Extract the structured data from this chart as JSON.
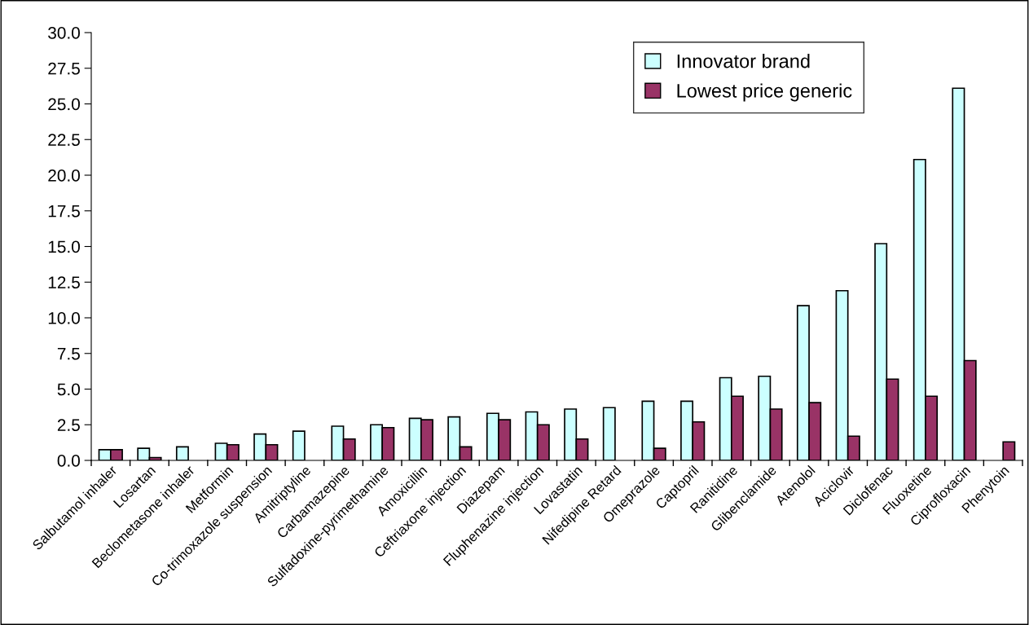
{
  "chart_data": {
    "type": "bar",
    "categories": [
      "Salbutamol inhaler",
      "Losartan",
      "Beclometasone inhaler",
      "Metformin",
      "Co-trimoxazole suspension",
      "Amitriptyline",
      "Carbamazepine",
      "Sulfadoxine-pyrimethamine",
      "Amoxicillin",
      "Ceftriaxone injection",
      "Diazepam",
      "Fluphenazine injection",
      "Lovastatin",
      "Nifedipine Retard",
      "Omeprazole",
      "Captopril",
      "Ranitidine",
      "Glibenclamide",
      "Atenolol",
      "Aciclovir",
      "Diclofenac",
      "Fluoxetine",
      "Ciprofloxacin",
      "Phenytoin"
    ],
    "series": [
      {
        "name": "Innovator brand",
        "color": "#ccffff",
        "values": [
          0.75,
          0.85,
          0.95,
          1.2,
          1.85,
          2.05,
          2.4,
          2.5,
          2.95,
          3.05,
          3.3,
          3.4,
          3.6,
          3.7,
          4.15,
          4.15,
          5.8,
          5.9,
          10.85,
          11.9,
          15.2,
          21.1,
          26.1,
          null
        ]
      },
      {
        "name": "Lowest price generic",
        "color": "#993366",
        "values": [
          0.75,
          0.2,
          null,
          1.1,
          1.1,
          null,
          1.5,
          2.3,
          2.85,
          0.95,
          2.85,
          2.5,
          1.5,
          null,
          0.85,
          2.7,
          4.5,
          3.6,
          4.05,
          1.7,
          5.7,
          4.5,
          7.0,
          1.3
        ]
      }
    ],
    "ylim": [
      0,
      30
    ],
    "yticks": [
      {
        "value": 0,
        "label": "0.0"
      },
      {
        "value": 2.5,
        "label": "2.5"
      },
      {
        "value": 5,
        "label": "5.0"
      },
      {
        "value": 7.5,
        "label": "7.5"
      },
      {
        "value": 10,
        "label": "10.0"
      },
      {
        "value": 12.5,
        "label": "12.5"
      },
      {
        "value": 15,
        "label": "15.0"
      },
      {
        "value": 17.5,
        "label": "17.5"
      },
      {
        "value": 20,
        "label": "20.0"
      },
      {
        "value": 22.5,
        "label": "22.5"
      },
      {
        "value": 25,
        "label": "25.0"
      },
      {
        "value": 27.5,
        "label": "27.5"
      },
      {
        "value": 30,
        "label": "30.0"
      }
    ],
    "legend": "top right",
    "grid": false
  }
}
